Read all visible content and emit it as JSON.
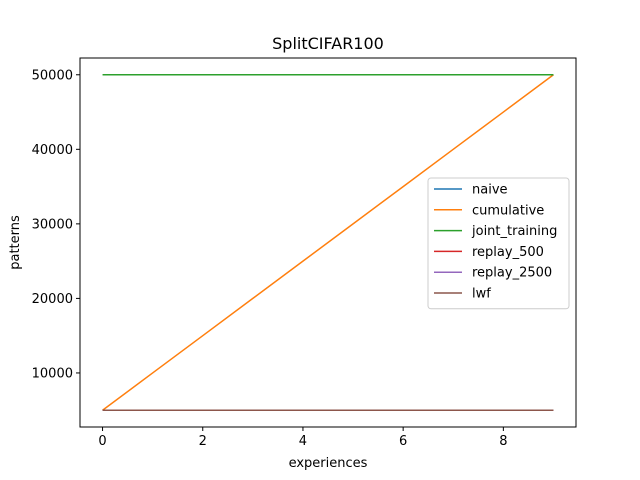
{
  "chart_data": {
    "type": "line",
    "title": "SplitCIFAR100",
    "xlabel": "experiences",
    "ylabel": "patterns",
    "xlim": [
      -0.45,
      9.45
    ],
    "ylim": [
      2750,
      52250
    ],
    "x_ticks": [
      0,
      2,
      4,
      6,
      8
    ],
    "x_tick_labels": [
      "0",
      "2",
      "4",
      "6",
      "8"
    ],
    "y_ticks": [
      10000,
      20000,
      30000,
      40000,
      50000
    ],
    "y_tick_labels": [
      "10000",
      "20000",
      "30000",
      "40000",
      "50000"
    ],
    "grid": false,
    "legend_position": "center-right",
    "x": [
      0,
      1,
      2,
      3,
      4,
      5,
      6,
      7,
      8,
      9
    ],
    "series": [
      {
        "name": "naive",
        "color": "#1f77b4",
        "values": [
          5000,
          5000,
          5000,
          5000,
          5000,
          5000,
          5000,
          5000,
          5000,
          5000
        ]
      },
      {
        "name": "cumulative",
        "color": "#ff7f0e",
        "values": [
          5000,
          10000,
          15000,
          20000,
          25000,
          30000,
          35000,
          40000,
          45000,
          50000
        ]
      },
      {
        "name": "joint_training",
        "color": "#2ca02c",
        "values": [
          50000,
          50000,
          50000,
          50000,
          50000,
          50000,
          50000,
          50000,
          50000,
          50000
        ]
      },
      {
        "name": "replay_500",
        "color": "#d62728",
        "values": [
          5000,
          5000,
          5000,
          5000,
          5000,
          5000,
          5000,
          5000,
          5000,
          5000
        ]
      },
      {
        "name": "replay_2500",
        "color": "#9467bd",
        "values": [
          5000,
          5000,
          5000,
          5000,
          5000,
          5000,
          5000,
          5000,
          5000,
          5000
        ]
      },
      {
        "name": "lwf",
        "color": "#8c564b",
        "values": [
          5000,
          5000,
          5000,
          5000,
          5000,
          5000,
          5000,
          5000,
          5000,
          5000
        ]
      }
    ]
  }
}
